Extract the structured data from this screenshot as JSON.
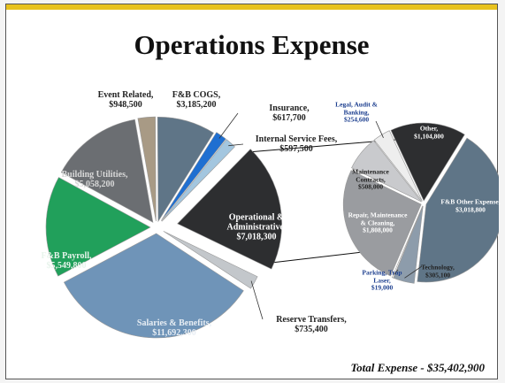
{
  "title": "Operations Expense",
  "footer_note": "Total Expense - $35,402,900",
  "chart_data": [
    {
      "type": "pie",
      "categories": [
        "Event Related,",
        "F&B COGS,",
        "Insurance,",
        "Internal Service Fees,",
        "Operational & Administrative,",
        "Reserve Transfers,",
        "Salaries & Benefits,",
        "F&B Payroll,",
        "Building Utilities,"
      ],
      "values": [
        948500,
        3185200,
        617700,
        597500,
        7018300,
        735400,
        11692300,
        5549800,
        5058200
      ],
      "value_labels": [
        "$948,500",
        "$3,185,200",
        "$617,700",
        "$597,500",
        "$7,018,300",
        "$735,400",
        "$11,692,300",
        "$5,549,800",
        "$5,058,200"
      ],
      "colors": [
        "#a89a85",
        "#5f7587",
        "#1f6fd1",
        "#a3c6df",
        "#2d2e30",
        "#c3c7cb",
        "#6f94b8",
        "#21a05b",
        "#6b6e72"
      ]
    },
    {
      "type": "pie",
      "categories": [
        "Other,",
        "F&B Other Expense,",
        "Technology,",
        "Parking, Trap Laser,",
        "Repair, Maintenance & Cleaning,",
        "Maintenance Contracts,",
        "Legal, Audit & Banking,"
      ],
      "values": [
        1104800,
        3018800,
        305100,
        19000,
        1808000,
        508000,
        254600
      ],
      "value_labels": [
        "$1,104,800",
        "$3,018,800",
        "$305,100",
        "$19,000",
        "$1,808,000",
        "$508,000",
        "$254,600"
      ],
      "colors": [
        "#2d2e30",
        "#5f7587",
        "#8d9cab",
        "#ffffff",
        "#9a9ca0",
        "#c9cacd",
        "#eeeeee"
      ]
    }
  ]
}
